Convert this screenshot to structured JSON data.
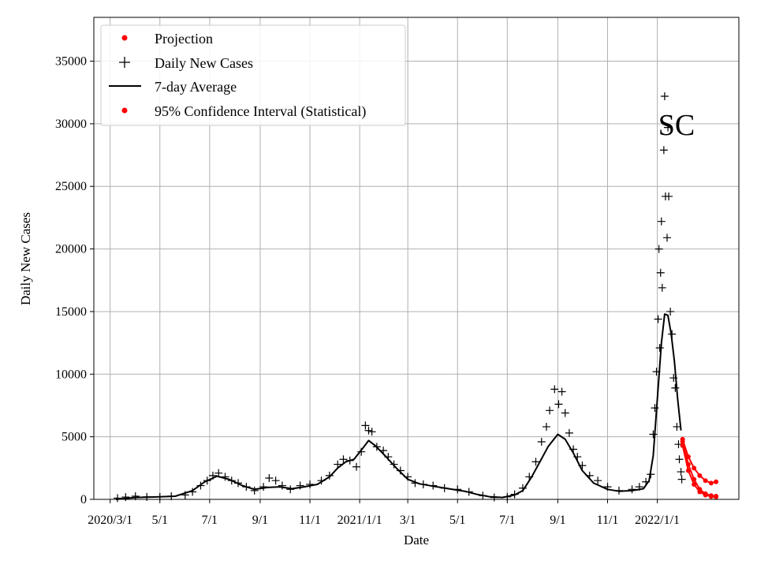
{
  "chart_data": {
    "type": "line",
    "annotation": "SC",
    "xlabel": "Date",
    "ylabel": "Daily New Cases",
    "x_ticks": [
      {
        "date": "2020-03-01",
        "label": "2020/3/1"
      },
      {
        "date": "2020-05-01",
        "label": "5/1"
      },
      {
        "date": "2020-07-01",
        "label": "7/1"
      },
      {
        "date": "2020-09-01",
        "label": "9/1"
      },
      {
        "date": "2020-11-01",
        "label": "11/1"
      },
      {
        "date": "2021-01-01",
        "label": "2021/1/1"
      },
      {
        "date": "2021-03-01",
        "label": "3/1"
      },
      {
        "date": "2021-05-01",
        "label": "5/1"
      },
      {
        "date": "2021-07-01",
        "label": "7/1"
      },
      {
        "date": "2021-09-01",
        "label": "9/1"
      },
      {
        "date": "2021-11-01",
        "label": "11/1"
      },
      {
        "date": "2022-01-01",
        "label": "2022/1/1"
      }
    ],
    "xlim": [
      "2020-02-10",
      "2022-04-11"
    ],
    "ylim": [
      0,
      38500
    ],
    "y_ticks": [
      0,
      5000,
      10000,
      15000,
      20000,
      25000,
      30000,
      35000
    ],
    "grid": true,
    "legend": {
      "placement": "top-left",
      "entries": [
        {
          "label": "Projection",
          "marker": "dot",
          "color": "#ff0000"
        },
        {
          "label": "Daily New Cases",
          "marker": "plus",
          "color": "#000000"
        },
        {
          "label": "7-day Average",
          "marker": "line",
          "color": "#000000"
        },
        {
          "label": "95% Confidence Interval (Statistical)",
          "marker": "dot",
          "color": "#ff0000"
        }
      ]
    },
    "series": [
      {
        "name": "7-day Average",
        "style": "line",
        "color": "#000000",
        "points": [
          [
            "2020-03-08",
            0
          ],
          [
            "2020-04-01",
            150
          ],
          [
            "2020-05-01",
            200
          ],
          [
            "2020-05-20",
            250
          ],
          [
            "2020-06-10",
            700
          ],
          [
            "2020-06-25",
            1400
          ],
          [
            "2020-07-10",
            1850
          ],
          [
            "2020-07-25",
            1600
          ],
          [
            "2020-08-10",
            1100
          ],
          [
            "2020-08-25",
            800
          ],
          [
            "2020-09-10",
            950
          ],
          [
            "2020-09-25",
            1000
          ],
          [
            "2020-10-10",
            850
          ],
          [
            "2020-10-25",
            1000
          ],
          [
            "2020-11-10",
            1200
          ],
          [
            "2020-11-25",
            1800
          ],
          [
            "2020-12-05",
            2500
          ],
          [
            "2020-12-15",
            3000
          ],
          [
            "2020-12-25",
            3200
          ],
          [
            "2021-01-05",
            4100
          ],
          [
            "2021-01-12",
            4700
          ],
          [
            "2021-01-20",
            4300
          ],
          [
            "2021-02-01",
            3500
          ],
          [
            "2021-02-15",
            2500
          ],
          [
            "2021-03-01",
            1600
          ],
          [
            "2021-03-15",
            1250
          ],
          [
            "2021-04-01",
            1050
          ],
          [
            "2021-04-20",
            850
          ],
          [
            "2021-05-10",
            650
          ],
          [
            "2021-05-25",
            400
          ],
          [
            "2021-06-10",
            200
          ],
          [
            "2021-06-25",
            150
          ],
          [
            "2021-07-10",
            350
          ],
          [
            "2021-07-20",
            700
          ],
          [
            "2021-07-31",
            1800
          ],
          [
            "2021-08-10",
            3000
          ],
          [
            "2021-08-20",
            4200
          ],
          [
            "2021-09-01",
            5200
          ],
          [
            "2021-09-10",
            4800
          ],
          [
            "2021-09-20",
            3700
          ],
          [
            "2021-10-01",
            2300
          ],
          [
            "2021-10-15",
            1300
          ],
          [
            "2021-11-01",
            800
          ],
          [
            "2021-11-15",
            650
          ],
          [
            "2021-12-01",
            700
          ],
          [
            "2021-12-15",
            850
          ],
          [
            "2021-12-22",
            1500
          ],
          [
            "2021-12-27",
            3500
          ],
          [
            "2022-01-01",
            8000
          ],
          [
            "2022-01-06",
            12500
          ],
          [
            "2022-01-10",
            14800
          ],
          [
            "2022-01-14",
            14700
          ],
          [
            "2022-01-18",
            13200
          ],
          [
            "2022-01-22",
            11000
          ],
          [
            "2022-01-26",
            8000
          ],
          [
            "2022-01-30",
            5500
          ]
        ]
      },
      {
        "name": "Daily New Cases",
        "style": "plus",
        "color": "#000000",
        "points": [
          [
            "2020-03-10",
            100
          ],
          [
            "2020-03-20",
            180
          ],
          [
            "2020-04-01",
            250
          ],
          [
            "2020-04-15",
            200
          ],
          [
            "2020-05-01",
            200
          ],
          [
            "2020-05-15",
            250
          ],
          [
            "2020-06-01",
            350
          ],
          [
            "2020-06-10",
            600
          ],
          [
            "2020-06-20",
            1100
          ],
          [
            "2020-06-28",
            1500
          ],
          [
            "2020-07-05",
            1900
          ],
          [
            "2020-07-12",
            2100
          ],
          [
            "2020-07-20",
            1800
          ],
          [
            "2020-07-28",
            1500
          ],
          [
            "2020-08-05",
            1300
          ],
          [
            "2020-08-15",
            1000
          ],
          [
            "2020-08-25",
            700
          ],
          [
            "2020-09-05",
            1000
          ],
          [
            "2020-09-12",
            1700
          ],
          [
            "2020-09-20",
            1500
          ],
          [
            "2020-09-28",
            1100
          ],
          [
            "2020-10-08",
            800
          ],
          [
            "2020-10-20",
            1100
          ],
          [
            "2020-11-01",
            1200
          ],
          [
            "2020-11-15",
            1500
          ],
          [
            "2020-11-25",
            1900
          ],
          [
            "2020-12-05",
            2800
          ],
          [
            "2020-12-12",
            3200
          ],
          [
            "2020-12-20",
            3100
          ],
          [
            "2020-12-28",
            2600
          ],
          [
            "2021-01-03",
            3800
          ],
          [
            "2021-01-08",
            5900
          ],
          [
            "2021-01-12",
            5500
          ],
          [
            "2021-01-16",
            5400
          ],
          [
            "2021-01-22",
            4200
          ],
          [
            "2021-01-30",
            3900
          ],
          [
            "2021-02-05",
            3400
          ],
          [
            "2021-02-12",
            2800
          ],
          [
            "2021-02-20",
            2300
          ],
          [
            "2021-03-01",
            1800
          ],
          [
            "2021-03-10",
            1300
          ],
          [
            "2021-03-20",
            1200
          ],
          [
            "2021-04-01",
            1100
          ],
          [
            "2021-04-15",
            900
          ],
          [
            "2021-05-01",
            800
          ],
          [
            "2021-05-15",
            600
          ],
          [
            "2021-06-01",
            300
          ],
          [
            "2021-06-15",
            150
          ],
          [
            "2021-07-01",
            200
          ],
          [
            "2021-07-10",
            400
          ],
          [
            "2021-07-20",
            900
          ],
          [
            "2021-07-28",
            1800
          ],
          [
            "2021-08-05",
            3000
          ],
          [
            "2021-08-12",
            4600
          ],
          [
            "2021-08-18",
            5800
          ],
          [
            "2021-08-22",
            7100
          ],
          [
            "2021-08-28",
            8800
          ],
          [
            "2021-09-02",
            7600
          ],
          [
            "2021-09-06",
            8600
          ],
          [
            "2021-09-10",
            6900
          ],
          [
            "2021-09-15",
            5300
          ],
          [
            "2021-09-20",
            4000
          ],
          [
            "2021-09-25",
            3400
          ],
          [
            "2021-10-01",
            2700
          ],
          [
            "2021-10-10",
            1900
          ],
          [
            "2021-10-20",
            1500
          ],
          [
            "2021-11-01",
            1000
          ],
          [
            "2021-11-15",
            700
          ],
          [
            "2021-12-01",
            800
          ],
          [
            "2021-12-10",
            1000
          ],
          [
            "2021-12-18",
            1400
          ],
          [
            "2021-12-24",
            2000
          ],
          [
            "2021-12-27",
            5200
          ],
          [
            "2021-12-29",
            7300
          ],
          [
            "2021-12-31",
            10200
          ],
          [
            "2022-01-02",
            14400
          ],
          [
            "2022-01-03",
            20000
          ],
          [
            "2022-01-04",
            12100
          ],
          [
            "2022-01-05",
            18100
          ],
          [
            "2022-01-06",
            22200
          ],
          [
            "2022-01-07",
            16900
          ],
          [
            "2022-01-09",
            27900
          ],
          [
            "2022-01-10",
            32200
          ],
          [
            "2022-01-11",
            24200
          ],
          [
            "2022-01-13",
            20900
          ],
          [
            "2022-01-14",
            29700
          ],
          [
            "2022-01-15",
            24200
          ],
          [
            "2022-01-17",
            15000
          ],
          [
            "2022-01-19",
            13200
          ],
          [
            "2022-01-21",
            9700
          ],
          [
            "2022-01-23",
            8900
          ],
          [
            "2022-01-25",
            5800
          ],
          [
            "2022-01-27",
            4400
          ],
          [
            "2022-01-28",
            3200
          ],
          [
            "2022-01-30",
            2200
          ],
          [
            "2022-01-31",
            1600
          ]
        ]
      },
      {
        "name": "Projection",
        "style": "red-band",
        "color": "#ff0000",
        "points": [
          [
            "2022-02-01",
            4600
          ],
          [
            "2022-02-08",
            2800
          ],
          [
            "2022-02-15",
            1600
          ],
          [
            "2022-02-22",
            800
          ],
          [
            "2022-03-01",
            450
          ],
          [
            "2022-03-08",
            300
          ],
          [
            "2022-03-14",
            250
          ]
        ]
      },
      {
        "name": "95% Confidence Interval (Statistical)",
        "style": "red-band",
        "color": "#ff0000",
        "lower": [
          [
            "2022-02-01",
            4300
          ],
          [
            "2022-02-08",
            2300
          ],
          [
            "2022-02-15",
            1200
          ],
          [
            "2022-02-22",
            600
          ],
          [
            "2022-03-01",
            350
          ],
          [
            "2022-03-08",
            230
          ],
          [
            "2022-03-14",
            200
          ]
        ],
        "upper": [
          [
            "2022-02-01",
            4800
          ],
          [
            "2022-02-08",
            3400
          ],
          [
            "2022-02-15",
            2500
          ],
          [
            "2022-02-22",
            1900
          ],
          [
            "2022-03-01",
            1500
          ],
          [
            "2022-03-08",
            1300
          ],
          [
            "2022-03-14",
            1400
          ]
        ]
      }
    ]
  }
}
